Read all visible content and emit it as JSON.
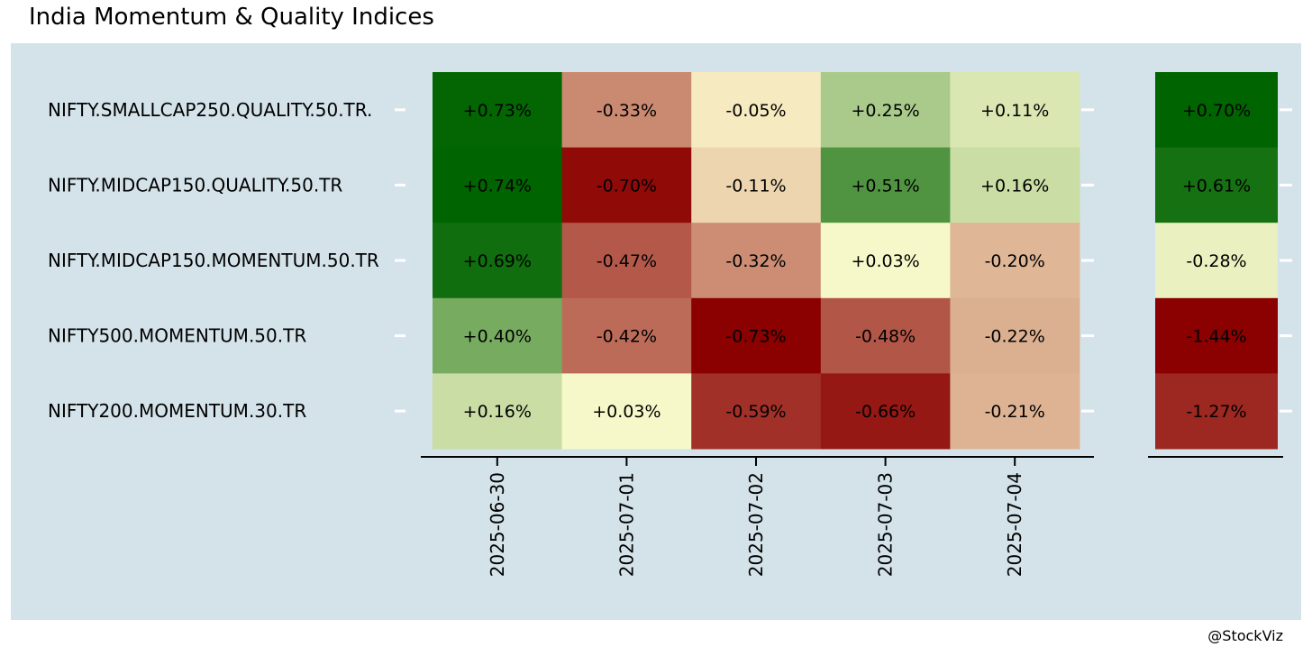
{
  "title": "India Momentum & Quality Indices",
  "credit": "@StockViz",
  "chart_data": [
    {
      "type": "heatmap",
      "title": "India Momentum & Quality Indices",
      "x": [
        "2025-06-30",
        "2025-07-01",
        "2025-07-02",
        "2025-07-03",
        "2025-07-04"
      ],
      "y": [
        "NIFTY.SMALLCAP250.QUALITY.50.TR.",
        "NIFTY.MIDCAP150.QUALITY.50.TR",
        "NIFTY.MIDCAP150.MOMENTUM.50.TR",
        "NIFTY500.MOMENTUM.50.TR",
        "NIFTY200.MOMENTUM.30.TR"
      ],
      "values": [
        [
          0.73,
          -0.33,
          -0.05,
          0.25,
          0.11
        ],
        [
          0.74,
          -0.7,
          -0.11,
          0.51,
          0.16
        ],
        [
          0.69,
          -0.47,
          -0.32,
          0.03,
          -0.2
        ],
        [
          0.4,
          -0.42,
          -0.73,
          -0.48,
          -0.22
        ],
        [
          0.16,
          0.03,
          -0.59,
          -0.66,
          -0.21
        ]
      ],
      "labels": [
        [
          "+0.73%",
          "-0.33%",
          "-0.05%",
          "+0.25%",
          "+0.11%"
        ],
        [
          "+0.74%",
          "-0.70%",
          "-0.11%",
          "+0.51%",
          "+0.16%"
        ],
        [
          "+0.69%",
          "-0.47%",
          "-0.32%",
          "+0.03%",
          "-0.20%"
        ],
        [
          "+0.40%",
          "-0.42%",
          "-0.73%",
          "-0.48%",
          "-0.22%"
        ],
        [
          "+0.16%",
          "+0.03%",
          "-0.59%",
          "-0.66%",
          "-0.21%"
        ]
      ],
      "color_scale": {
        "low": "#8b0000",
        "mid": "#fffdd0",
        "high": "#006400"
      }
    },
    {
      "type": "heatmap",
      "y": [
        "NIFTY.SMALLCAP250.QUALITY.50.TR.",
        "NIFTY.MIDCAP150.QUALITY.50.TR",
        "NIFTY.MIDCAP150.MOMENTUM.50.TR",
        "NIFTY500.MOMENTUM.50.TR",
        "NIFTY200.MOMENTUM.30.TR"
      ],
      "values": [
        0.7,
        0.61,
        -0.28,
        -1.44,
        -1.27
      ],
      "labels": [
        "+0.70%",
        "+0.61%",
        "-0.28%",
        "-1.44%",
        "-1.27%"
      ],
      "color_scale": {
        "low": "#8b0000",
        "mid": "#fffdd0",
        "high": "#006400"
      }
    }
  ]
}
